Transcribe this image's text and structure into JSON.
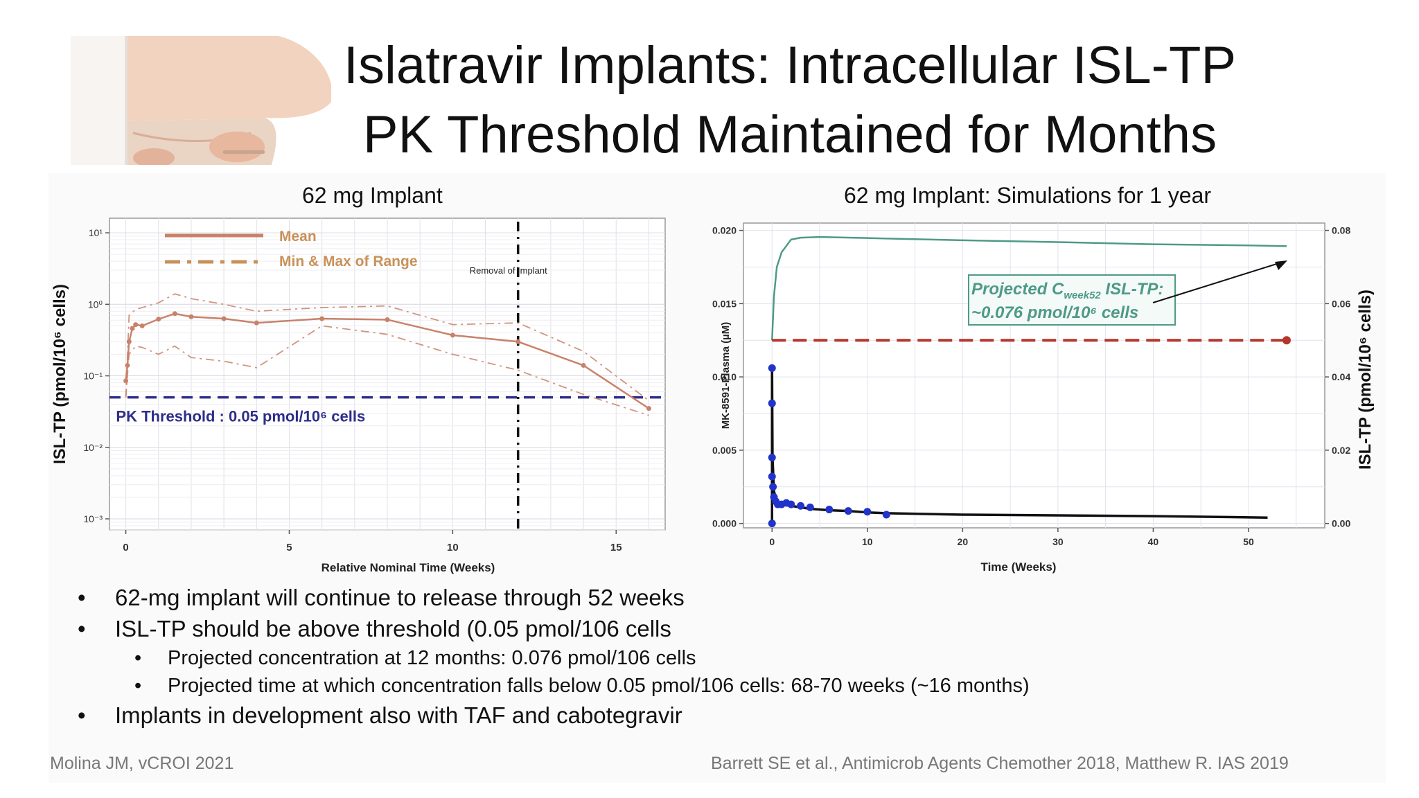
{
  "slide": {
    "title_line1": "Islatravir Implants: Intracellular ISL-TP",
    "title_line2": "PK Threshold Maintained for Months",
    "bullets": [
      {
        "level": 1,
        "text": "62-mg implant will continue to release through 52 weeks"
      },
      {
        "level": 1,
        "text": "ISL-TP should be above threshold (0.05 pmol/106 cells"
      },
      {
        "level": 2,
        "text": "Projected concentration at 12 months: 0.076 pmol/106 cells"
      },
      {
        "level": 2,
        "text": "Projected time at which concentration falls below 0.05 pmol/106 cells: 68-70 weeks (~16 months)"
      },
      {
        "level": 1,
        "text": "Implants in development also with TAF and cabotegravir"
      }
    ],
    "citation_left": "Molina JM, vCROI 2021",
    "citation_right": "Barrett SE et al., Antimicrob Agents Chemother 2018, Matthew R. IAS 2019",
    "colors": {
      "mean": "#c8826a",
      "threshold": "#2d2d8a",
      "legend": "#c8915a",
      "projection": "#4e9a87",
      "dashed_red": "#b5362c",
      "plasma": "#2233cc"
    }
  },
  "chart_data": [
    {
      "type": "line",
      "title": "62 mg Implant",
      "xlabel": "Relative Nominal Time (Weeks)",
      "ylabel": "ISL-TP  (pmol/10⁶ cells)",
      "y_scale": "log",
      "xlim": [
        -0.5,
        16.5
      ],
      "ylim": [
        0.0007,
        16
      ],
      "x_ticks": [
        0,
        5,
        10,
        15
      ],
      "y_ticks": [
        {
          "value": 10,
          "label": "10¹"
        },
        {
          "value": 1,
          "label": "10⁰"
        },
        {
          "value": 0.1,
          "label": "10⁻¹"
        },
        {
          "value": 0.01,
          "label": "10⁻²"
        },
        {
          "value": 0.001,
          "label": "10⁻³"
        }
      ],
      "grid": true,
      "legend": "top-left",
      "series": [
        {
          "name": "Mean",
          "style": "solid",
          "x": [
            0,
            0.05,
            0.1,
            0.2,
            0.3,
            0.5,
            1,
            1.5,
            2,
            3,
            4,
            6,
            8,
            10,
            12,
            14,
            16
          ],
          "y": [
            0.085,
            0.14,
            0.3,
            0.46,
            0.52,
            0.5,
            0.62,
            0.74,
            0.67,
            0.63,
            0.55,
            0.63,
            0.61,
            0.37,
            0.3,
            0.14,
            0.035
          ]
        },
        {
          "name": "Min & Max of Range",
          "style": "dash-dot",
          "x": [
            0,
            0.1,
            0.3,
            0.5,
            1,
            1.5,
            2,
            3,
            4,
            6,
            8,
            10,
            12,
            14,
            16
          ],
          "y": [
            0.05,
            0.7,
            0.85,
            0.9,
            1.05,
            1.4,
            1.2,
            1.0,
            0.8,
            0.9,
            0.95,
            0.52,
            0.55,
            0.22,
            0.045
          ]
        },
        {
          "name": "",
          "style": "dash-dot",
          "x": [
            0,
            0.1,
            0.3,
            0.5,
            1,
            1.5,
            2,
            3,
            4,
            6,
            8,
            10,
            12,
            14,
            16
          ],
          "y": [
            0.05,
            0.2,
            0.26,
            0.25,
            0.2,
            0.26,
            0.18,
            0.16,
            0.13,
            0.5,
            0.38,
            0.2,
            0.12,
            0.055,
            0.028
          ]
        }
      ],
      "threshold": {
        "value": 0.05,
        "label": "PK Threshold : 0.05 pmol/10⁶ cells"
      },
      "annotation": {
        "x": 12,
        "label": "Removal of Implant"
      }
    },
    {
      "type": "line",
      "title": "62 mg Implant: Simulations for 1 year",
      "xlabel": "Time (Weeks)",
      "ylabel": "MK-8591-Plasma (µM)",
      "ylabel_right": "ISL-TP  (pmol/10⁶ cells)",
      "xlim": [
        -3,
        58
      ],
      "ylim": [
        -0.0003,
        0.0205
      ],
      "ylim_right": [
        -0.0012,
        0.082
      ],
      "x_ticks": [
        0,
        10,
        20,
        30,
        40,
        50
      ],
      "y_ticks": [
        0,
        0.005,
        0.01,
        0.015,
        0.02
      ],
      "y_tick_labels": [
        "0.000",
        "0.005",
        "0.010",
        "0.015",
        "0.020"
      ],
      "y_ticks_right": [
        0,
        0.02,
        0.04,
        0.06,
        0.08
      ],
      "y_tick_labels_right": [
        "0.00",
        "0.02",
        "0.04",
        "0.06",
        "0.08"
      ],
      "grid": true,
      "series": [
        {
          "name": "",
          "axis": "right",
          "style": "line",
          "x": [
            0,
            0.2,
            0.5,
            1,
            2,
            3,
            5,
            10,
            20,
            30,
            40,
            50,
            54
          ],
          "y": [
            0.05,
            0.062,
            0.07,
            0.074,
            0.0775,
            0.078,
            0.0782,
            0.0779,
            0.0773,
            0.0768,
            0.0762,
            0.0759,
            0.0757
          ]
        },
        {
          "name": "",
          "axis": "right",
          "style": "dashed",
          "x": [
            0,
            54
          ],
          "y": [
            0.05,
            0.05
          ]
        },
        {
          "name": "",
          "axis": "left",
          "style": "line",
          "x": [
            0,
            0.05,
            0.2,
            0.5,
            1,
            2,
            3,
            4,
            6,
            8,
            10,
            12,
            20,
            30,
            40,
            52
          ],
          "y": [
            0.0106,
            0.0045,
            0.0022,
            0.0015,
            0.0013,
            0.0012,
            0.0011,
            0.001,
            0.0009,
            0.00085,
            0.00075,
            0.0007,
            0.0006,
            0.00055,
            0.0005,
            0.0004
          ]
        },
        {
          "name": "",
          "axis": "left",
          "style": "points",
          "x": [
            0,
            0,
            0,
            0,
            0,
            0.1,
            0.2,
            0.4,
            0.6,
            1,
            1.5,
            2,
            3,
            4,
            6,
            8,
            10,
            12
          ],
          "y": [
            0,
            0.0106,
            0.0082,
            0.0045,
            0.0032,
            0.0025,
            0.0018,
            0.0015,
            0.0013,
            0.0013,
            0.0014,
            0.0013,
            0.0012,
            0.0011,
            0.00095,
            0.00085,
            0.0008,
            0.0006
          ]
        }
      ],
      "annotation": {
        "line1_prefix": "Projected C",
        "line1_sub": "week52",
        "line1_suffix": " ISL-TP:",
        "line2": "~0.076 pmol/10⁶ cells"
      }
    }
  ]
}
